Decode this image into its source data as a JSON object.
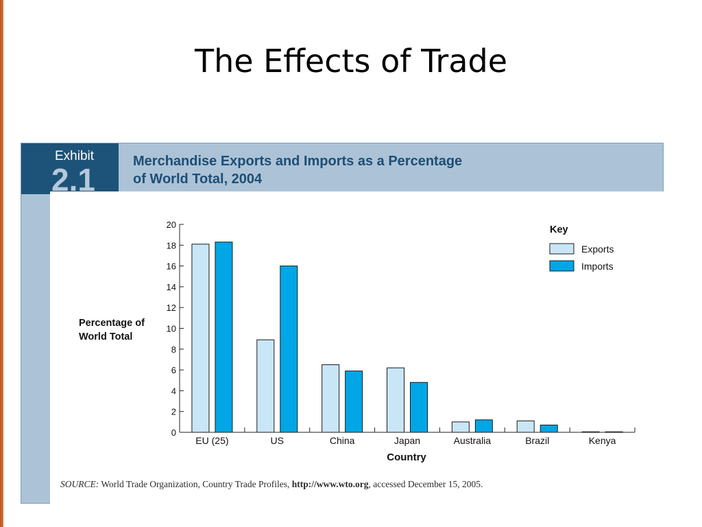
{
  "slide": {
    "title": "The Effects of Trade"
  },
  "exhibit": {
    "label": "Exhibit",
    "number": "2.1",
    "heading_line1": "Merchandise Exports and Imports as a Percentage",
    "heading_line2": "of World Total, 2004"
  },
  "source": {
    "label": "SOURCE:",
    "text": "World Trade Organization, Country Trade Profiles,",
    "url": "http://www.wto.org",
    "suffix": ", accessed December 15, 2005."
  },
  "colors": {
    "exports": "#c9e6f7",
    "imports": "#00a6e6",
    "exhibit_box": "#1d5378",
    "frame": "#acc3d7"
  },
  "chart_data": {
    "type": "bar",
    "title": "Merchandise Exports and Imports as a Percentage of World Total, 2004",
    "xlabel": "Country",
    "ylabel_lines": [
      "Percentage of",
      "World Total"
    ],
    "ylim": [
      0,
      20
    ],
    "yticks": [
      0,
      2,
      4,
      6,
      8,
      10,
      12,
      14,
      16,
      18,
      20
    ],
    "categories": [
      "EU (25)",
      "US",
      "China",
      "Japan",
      "Australia",
      "Brazil",
      "Kenya"
    ],
    "series": [
      {
        "name": "Exports",
        "values": [
          18.1,
          8.9,
          6.5,
          6.2,
          1.0,
          1.1,
          0.05
        ]
      },
      {
        "name": "Imports",
        "values": [
          18.3,
          16.0,
          5.9,
          4.8,
          1.2,
          0.7,
          0.05
        ]
      }
    ],
    "legend_title": "Key",
    "legend_position": "top-right",
    "grid": false
  }
}
